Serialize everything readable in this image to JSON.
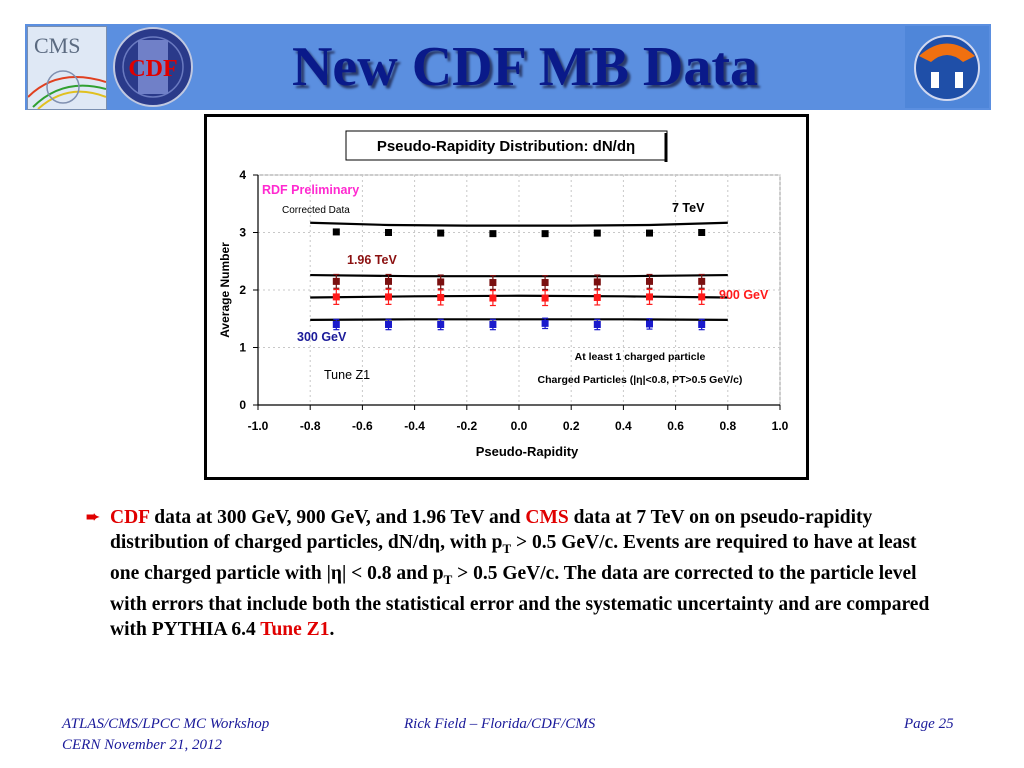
{
  "slide": {
    "title": "New CDF MB Data",
    "logos": {
      "left1": "CMS",
      "left2": "CDF"
    }
  },
  "bullet": {
    "parts": [
      {
        "t": "CDF",
        "c": "red"
      },
      {
        "t": " data at 300 GeV, 900 GeV, and 1.96 TeV and ",
        "c": ""
      },
      {
        "t": "CMS",
        "c": "red"
      },
      {
        "t": " data at 7 TeV on on pseudo-rapidity distribution of charged particles, dN/dη, with p",
        "c": ""
      },
      {
        "t": "T",
        "c": "sub"
      },
      {
        "t": " > 0.5 GeV/c.  Events are required to have at least one charged particle with |η| < 0.8 and p",
        "c": ""
      },
      {
        "t": "T",
        "c": "sub"
      },
      {
        "t": " > 0.5 GeV/c.   The data are corrected to the particle level with errors that include both the statistical error and the systematic uncertainty and are compared with PYTHIA 6.4 ",
        "c": ""
      },
      {
        "t": "Tune Z1",
        "c": "red"
      },
      {
        "t": ".",
        "c": ""
      }
    ]
  },
  "footer": {
    "left_line1": "ATLAS/CMS/LPCC MC Workshop",
    "left_line2": "CERN November 21, 2012",
    "center": "Rick Field – Florida/CDF/CMS",
    "right": "Page 25"
  },
  "chart_data": {
    "type": "scatter",
    "title": "Pseudo-Rapidity Distribution: dN/dη",
    "xlabel": "Pseudo-Rapidity",
    "ylabel": "Average Number",
    "xlim": [
      -1.0,
      1.0
    ],
    "ylim": [
      0,
      4
    ],
    "xticks": [
      "-1.0",
      "-0.8",
      "-0.6",
      "-0.4",
      "-0.2",
      "0.0",
      "0.2",
      "0.4",
      "0.6",
      "0.8",
      "1.0"
    ],
    "yticks": [
      "0",
      "1",
      "2",
      "3",
      "4"
    ],
    "annotations": {
      "preliminary": "RDF Preliminary",
      "corrected": "Corrected Data",
      "tune": "Tune Z1",
      "selection1": "At least 1 charged particle",
      "selection2": "Charged Particles (|η|<0.8, PT>0.5 GeV/c)"
    },
    "series": [
      {
        "name": "7 TeV",
        "color": "#000000",
        "x": [
          -0.7,
          -0.5,
          -0.3,
          -0.1,
          0.1,
          0.3,
          0.5,
          0.7
        ],
        "y": [
          3.01,
          3.0,
          2.99,
          2.98,
          2.98,
          2.99,
          2.99,
          3.0
        ],
        "err": [
          0,
          0,
          0,
          0,
          0,
          0,
          0,
          0
        ],
        "curve": [
          [
            -0.8,
            3.17
          ],
          [
            -0.5,
            3.13
          ],
          [
            -0.2,
            3.12
          ],
          [
            0.0,
            3.12
          ],
          [
            0.2,
            3.12
          ],
          [
            0.5,
            3.13
          ],
          [
            0.8,
            3.17
          ]
        ]
      },
      {
        "name": "1.96 TeV",
        "color": "#7a1010",
        "x": [
          -0.7,
          -0.5,
          -0.3,
          -0.1,
          0.1,
          0.3,
          0.5,
          0.7
        ],
        "y": [
          2.15,
          2.15,
          2.14,
          2.13,
          2.13,
          2.14,
          2.15,
          2.15
        ],
        "err": [
          0.12,
          0.12,
          0.12,
          0.12,
          0.12,
          0.12,
          0.12,
          0.12
        ],
        "curve": [
          [
            -0.8,
            2.26
          ],
          [
            -0.4,
            2.24
          ],
          [
            0.0,
            2.24
          ],
          [
            0.4,
            2.24
          ],
          [
            0.8,
            2.26
          ]
        ]
      },
      {
        "name": "900 GeV",
        "color": "#ff1a1a",
        "x": [
          -0.7,
          -0.5,
          -0.3,
          -0.1,
          0.1,
          0.3,
          0.5,
          0.7
        ],
        "y": [
          1.88,
          1.88,
          1.87,
          1.86,
          1.86,
          1.87,
          1.88,
          1.88
        ],
        "err": [
          0.13,
          0.13,
          0.13,
          0.13,
          0.13,
          0.13,
          0.13,
          0.13
        ],
        "curve": [
          [
            -0.8,
            1.87
          ],
          [
            -0.4,
            1.89
          ],
          [
            0.0,
            1.9
          ],
          [
            0.4,
            1.89
          ],
          [
            0.8,
            1.87
          ]
        ]
      },
      {
        "name": "300 GeV",
        "color": "#1a1acc",
        "x": [
          -0.7,
          -0.5,
          -0.3,
          -0.1,
          0.1,
          0.3,
          0.5,
          0.7
        ],
        "y": [
          1.4,
          1.4,
          1.4,
          1.4,
          1.42,
          1.4,
          1.41,
          1.4
        ],
        "err": [
          0.09,
          0.09,
          0.09,
          0.09,
          0.09,
          0.09,
          0.09,
          0.09
        ],
        "curve": [
          [
            -0.8,
            1.48
          ],
          [
            -0.4,
            1.49
          ],
          [
            0.0,
            1.49
          ],
          [
            0.4,
            1.49
          ],
          [
            0.8,
            1.48
          ]
        ]
      }
    ]
  }
}
